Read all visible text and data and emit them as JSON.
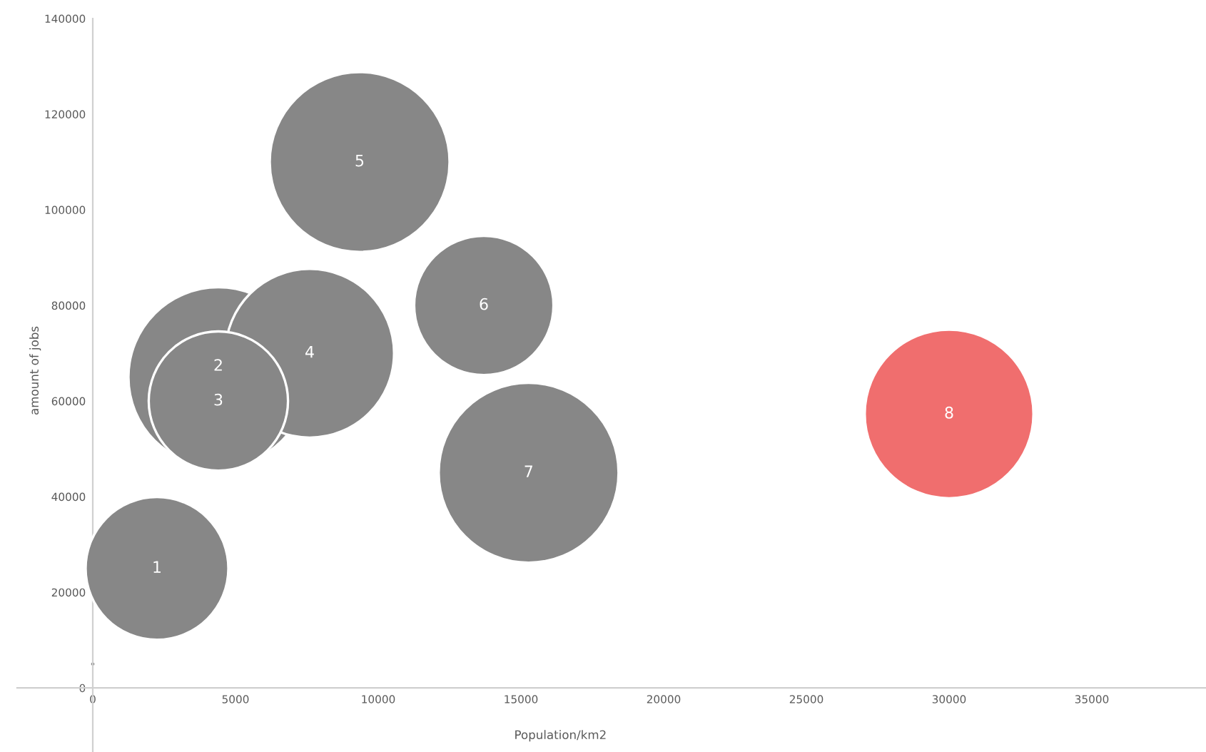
{
  "chart_data": {
    "type": "bubble",
    "xlabel": "Population/km2",
    "ylabel": "amount of jobs",
    "x": [
      0,
      2250,
      4400,
      7600,
      4400,
      9350,
      13700,
      15270,
      30000
    ],
    "values": [
      5000,
      25000,
      65000,
      70000,
      60000,
      110000,
      80000,
      45000,
      57300
    ],
    "sizes": [
      0.001,
      0.63,
      1,
      0.88,
      0.6,
      1,
      0.6,
      1,
      0.88
    ],
    "colors": [
      "#878787",
      "#878787",
      "#878787",
      "#878787",
      "#878787",
      "#878787",
      "#878787",
      "#878787",
      "#f06e6e"
    ],
    "annotations": [
      {
        "text": "1",
        "x": 2250,
        "y": 25000
      },
      {
        "text": "2",
        "x": 4400,
        "y": 65000
      },
      {
        "text": "3",
        "x": 4400,
        "y": 60000
      },
      {
        "text": "4",
        "x": 7600,
        "y": 70000
      },
      {
        "text": "5",
        "x": 9350,
        "y": 110000
      },
      {
        "text": "6",
        "x": 13700,
        "y": 80000
      },
      {
        "text": "7",
        "x": 15270,
        "y": 45000
      },
      {
        "text": "8",
        "x": 30000,
        "y": 57300
      }
    ],
    "xlim": [
      -2650,
      39000
    ],
    "ylim": [
      -13400,
      140000
    ],
    "xticks": [
      0,
      5000,
      10000,
      15000,
      20000,
      25000,
      30000,
      35000
    ],
    "yticks": [
      0,
      20000,
      40000,
      60000,
      80000,
      100000,
      120000,
      140000
    ],
    "grid": false,
    "legend": false
  }
}
